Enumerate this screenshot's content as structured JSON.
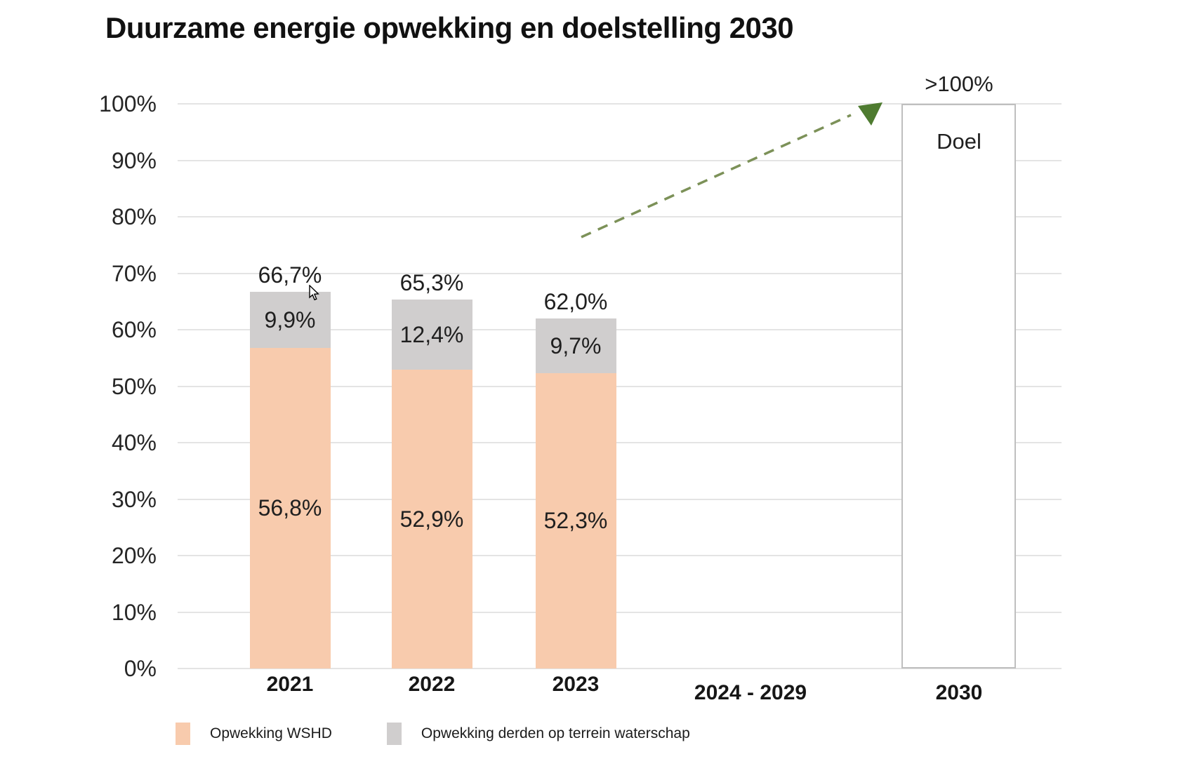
{
  "title": "Duurzame energie opwekking en doelstelling 2030",
  "colors": {
    "wshd": "#F8CBAD",
    "derden": "#D0CECE",
    "grid": "#E4E4E4",
    "goal_border": "#BFBFBF",
    "arrow_dash": "#7C9158",
    "arrow_head": "#4E7B30",
    "text": "#1A1A1A"
  },
  "chart_data": {
    "type": "bar",
    "stacked": true,
    "title": "Duurzame energie opwekking en doelstelling 2030",
    "categories": [
      "2021",
      "2022",
      "2023",
      "2024 - 2029",
      "2030"
    ],
    "series": [
      {
        "name": "Opwekking WSHD",
        "values": [
          56.8,
          52.9,
          52.3,
          null,
          null
        ],
        "labels": [
          "56,8%",
          "52,9%",
          "52,3%"
        ]
      },
      {
        "name": "Opwekking derden op terrein waterschap",
        "values": [
          9.9,
          12.4,
          9.7,
          null,
          null
        ],
        "labels": [
          "9,9%",
          "12,4%",
          "9,7%"
        ]
      }
    ],
    "totals": {
      "values": [
        66.7,
        65.3,
        62.0
      ],
      "labels": [
        "66,7%",
        "65,3%",
        "62,0%"
      ]
    },
    "goal": {
      "category": "2030",
      "value_label": ">100%",
      "bar_label": "Doel",
      "value": 100
    },
    "annotation": {
      "trend_arrow": "dashed green arrow rising from above 2024 - 2029 toward the 2030 goal bar"
    },
    "xlabel": "",
    "ylabel": "",
    "ylim": [
      0,
      100
    ],
    "yticks": [
      "0%",
      "10%",
      "20%",
      "30%",
      "40%",
      "50%",
      "60%",
      "70%",
      "80%",
      "90%",
      "100%"
    ],
    "grid": true,
    "legend_position": "bottom"
  },
  "legend": {
    "items": [
      {
        "label": "Opwekking WSHD",
        "color": "#F8CBAD"
      },
      {
        "label": "Opwekking derden op terrein waterschap",
        "color": "#D0CECE"
      }
    ]
  }
}
